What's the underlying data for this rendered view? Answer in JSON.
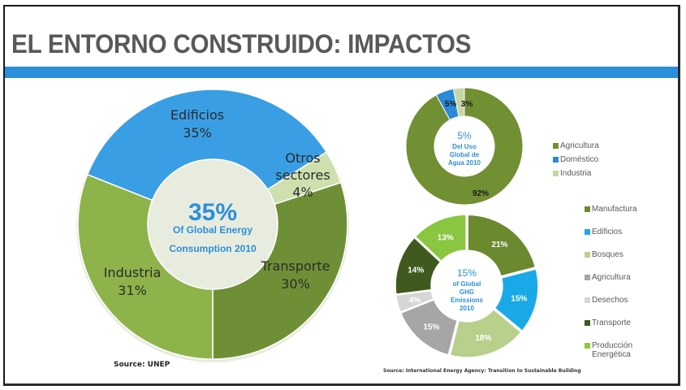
{
  "slide": {
    "title": "EL ENTORNO CONSTRUIDO: IMPACTOS",
    "accent_color": "#2b8fdb"
  },
  "chart_data": [
    {
      "type": "pie",
      "variant": "donut",
      "title": "Global Energy Consumption 2010",
      "center_value": "35%",
      "center_text": [
        "Of Global Energy",
        "Consumption 2010"
      ],
      "start": "bottom",
      "direction": "counterclockwise",
      "categories": [
        "Transporte",
        "Otros sectores",
        "Edificios",
        "Industria"
      ],
      "label_lines": [
        [
          "Transporte",
          "30%"
        ],
        [
          "Otros",
          "sectores",
          "4%"
        ],
        [
          "Edificios",
          "35%"
        ],
        [
          "Industria",
          "31%"
        ]
      ],
      "values": [
        30,
        4,
        35,
        31
      ],
      "colors": [
        "#6e8f36",
        "#cfe0ae",
        "#3a9ee4",
        "#8db34a"
      ],
      "source": "Source: UNEP"
    },
    {
      "type": "pie",
      "variant": "donut",
      "title": "Uso Global de Agua 2010",
      "center_value": "5%",
      "center_text": [
        "Del Uso",
        "Global de",
        "Agua 2010"
      ],
      "start": "top",
      "direction": "clockwise",
      "categories": [
        "Agricultura",
        "Doméstico",
        "Industria"
      ],
      "value_labels": [
        "92%",
        "5%",
        "3%"
      ],
      "values": [
        92,
        5,
        3
      ],
      "colors": [
        "#718f33",
        "#2c89d6",
        "#c8d6a4"
      ],
      "legend": {
        "position": "right",
        "entries": [
          "Agricultura",
          "Doméstico",
          "Industria"
        ]
      }
    },
    {
      "type": "pie",
      "variant": "donut",
      "title": "Global GHG Emissions 2010",
      "center_value": "15%",
      "center_text": [
        "of Global",
        "GHG",
        "Emissions",
        "2010"
      ],
      "start": "top",
      "direction": "clockwise",
      "categories": [
        "Manufactura",
        "Edificios",
        "Bosques",
        "Agricultura",
        "Desechos",
        "Transporte",
        "Producción Energética"
      ],
      "legend_lines": [
        [
          "Manufactura"
        ],
        [
          "Edificios"
        ],
        [
          "Bosques"
        ],
        [
          "Agricultura"
        ],
        [
          "Desechos"
        ],
        [
          "Transporte"
        ],
        [
          "Producción",
          "Energética"
        ]
      ],
      "value_labels": [
        "21%",
        "15%",
        "18%",
        "15%",
        "4%",
        "14%",
        "13%"
      ],
      "values": [
        21,
        15,
        18,
        15,
        4,
        14,
        13
      ],
      "colors": [
        "#6b8a30",
        "#1aa9e8",
        "#b7d08c",
        "#a6a6a6",
        "#d6d6d6",
        "#3f5a1e",
        "#8ac640"
      ],
      "legend": {
        "position": "right",
        "entries": [
          "Manufactura",
          "Edificios",
          "Bosques",
          "Agricultura",
          "Desechos",
          "Transporte",
          "Producción Energética"
        ]
      },
      "source": "Source: International Energy Agency: Transition to Sustainable Building"
    }
  ]
}
